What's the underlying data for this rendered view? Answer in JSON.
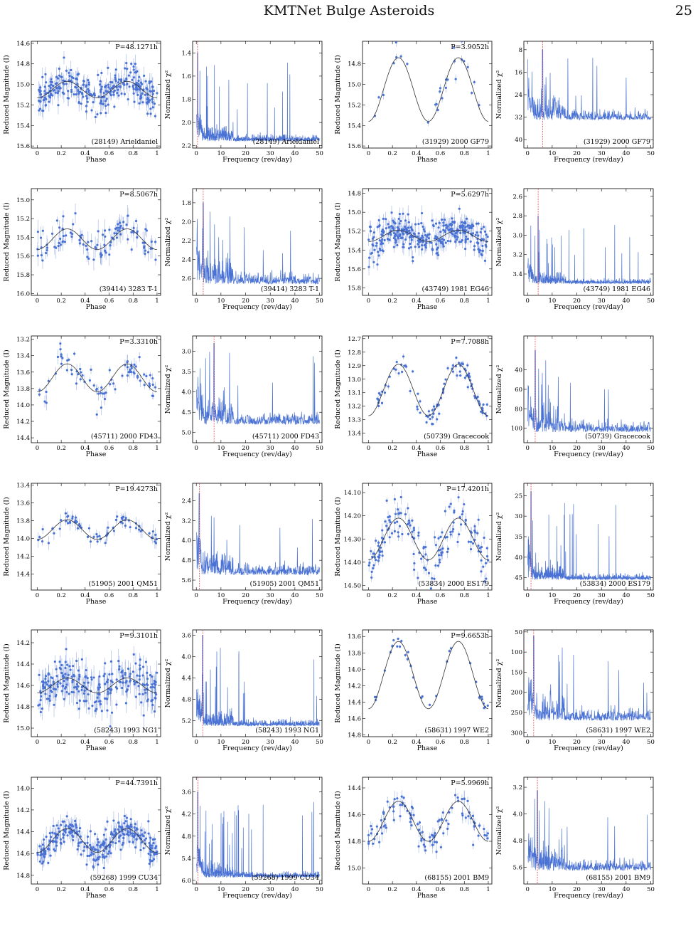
{
  "header": {
    "title": "KMTNet Bulge Asteroids",
    "page_number": "25"
  },
  "footer": {
    "text": ""
  },
  "labels": {
    "phase_x": "Phase",
    "phase_y": "Reduced Magnitude (I)",
    "freq_x": "Frequency (rev/day)",
    "freq_y": "Normalized χ²"
  },
  "colors": {
    "data": "#4a72d4",
    "fit": "#333333",
    "period_marker": "#e0333a",
    "frame": "#000000"
  },
  "chart_data": [
    {
      "type": "scatter",
      "name": "(28149) Arieldaniel",
      "period": "P=48.1271h",
      "phase": {
        "ylim": [
          15.62,
          14.58
        ],
        "yticks": [
          14.6,
          14.8,
          15.0,
          15.2,
          15.4,
          15.6
        ],
        "mean": 15.05,
        "amp": 0.08,
        "scatter": 0.09,
        "n": 300,
        "err": 0.06
      },
      "freq": {
        "ylim": [
          1.3,
          2.22
        ],
        "yticks": [
          1.4,
          1.6,
          1.8,
          2.0,
          2.2
        ],
        "plateau": 2.16,
        "low": 1.4,
        "marker": 0.5,
        "dense": true
      }
    },
    {
      "type": "scatter",
      "name": "(31929) 2000 GF79",
      "period": "P=3.9052h",
      "phase": {
        "ylim": [
          15.62,
          14.58
        ],
        "yticks": [
          14.8,
          15.0,
          15.2,
          15.4,
          15.6
        ],
        "mean": 15.05,
        "amp": 0.31,
        "scatter": 0.06,
        "n": 28,
        "err": 0.03
      },
      "freq": {
        "ylim": [
          5,
          43
        ],
        "yticks": [
          8,
          16,
          24,
          32,
          40
        ],
        "plateau": 33,
        "low": 8,
        "marker": 6.1,
        "dense": false
      }
    },
    {
      "type": "scatter",
      "name": "(39414) 3283 T-1",
      "period": "P=8.5067h",
      "phase": {
        "ylim": [
          16.02,
          14.88
        ],
        "yticks": [
          15.0,
          15.2,
          15.4,
          15.6,
          15.8,
          16.0
        ],
        "mean": 15.42,
        "amp": 0.11,
        "scatter": 0.08,
        "n": 110,
        "err": 0.08
      },
      "freq": {
        "ylim": [
          1.65,
          2.78
        ],
        "yticks": [
          1.8,
          2.0,
          2.2,
          2.4,
          2.6
        ],
        "plateau": 2.66,
        "low": 1.8,
        "marker": 2.8,
        "dense": false
      }
    },
    {
      "type": "scatter",
      "name": "(43749) 1981 EG46",
      "period": "P=5.6297h",
      "phase": {
        "ylim": [
          15.88,
          14.75
        ],
        "yticks": [
          14.8,
          15.0,
          15.2,
          15.4,
          15.6,
          15.8
        ],
        "mean": 15.25,
        "amp": 0.06,
        "scatter": 0.1,
        "n": 330,
        "err": 0.06
      },
      "freq": {
        "ylim": [
          2.52,
          3.62
        ],
        "yticks": [
          2.6,
          2.8,
          3.0,
          3.2,
          3.4
        ],
        "plateau": 3.5,
        "low": 2.8,
        "marker": 4.3,
        "dense": true
      }
    },
    {
      "type": "scatter",
      "name": "(45711) 2000 FD43",
      "period": "P=3.3310h",
      "phase": {
        "ylim": [
          14.46,
          13.16
        ],
        "yticks": [
          13.2,
          13.4,
          13.6,
          13.8,
          14.0,
          14.2,
          14.4
        ],
        "mean": 13.67,
        "amp": 0.17,
        "scatter": 0.1,
        "n": 80,
        "err": 0.06
      },
      "freq": {
        "ylim": [
          2.62,
          5.25
        ],
        "yticks": [
          3.0,
          3.5,
          4.0,
          4.5,
          5.0
        ],
        "plateau": 4.8,
        "low": 2.8,
        "marker": 7.2,
        "dense": false
      }
    },
    {
      "type": "scatter",
      "name": "(50739) Gracecook",
      "period": "P=7.7088h",
      "phase": {
        "ylim": [
          13.47,
          12.68
        ],
        "yticks": [
          12.7,
          12.8,
          12.9,
          13.0,
          13.1,
          13.2,
          13.3,
          13.4
        ],
        "mean": 13.08,
        "amp": 0.19,
        "scatter": 0.05,
        "n": 100,
        "err": 0.02
      },
      "freq": {
        "ylim": [
          5,
          115
        ],
        "yticks": [
          40,
          60,
          80,
          100
        ],
        "plateau": 104,
        "low": 20,
        "marker": 3.1,
        "dense": false
      }
    },
    {
      "type": "scatter",
      "name": "(51905) 2001 QM51",
      "period": "P=19.4273h",
      "phase": {
        "ylim": [
          14.58,
          13.38
        ],
        "yticks": [
          13.4,
          13.6,
          13.8,
          14.0,
          14.2,
          14.4
        ],
        "mean": 13.9,
        "amp": 0.11,
        "scatter": 0.05,
        "n": 70,
        "err": 0.06
      },
      "freq": {
        "ylim": [
          1.7,
          6.0
        ],
        "yticks": [
          2.4,
          3.2,
          4.0,
          4.8,
          5.6
        ],
        "plateau": 5.4,
        "low": 2.1,
        "marker": 1.2,
        "dense": false
      }
    },
    {
      "type": "scatter",
      "name": "(53834) 2000 ES179",
      "period": "P=17.4201h",
      "phase": {
        "ylim": [
          14.52,
          14.06
        ],
        "yticks": [
          14.1,
          14.2,
          14.3,
          14.4,
          14.5
        ],
        "mean": 14.3,
        "amp": 0.09,
        "scatter": 0.05,
        "n": 160,
        "err": 0.02
      },
      "freq": {
        "ylim": [
          22,
          48
        ],
        "yticks": [
          25,
          30,
          35,
          40,
          45
        ],
        "plateau": 45.5,
        "low": 24,
        "marker": 1.4,
        "dense": true
      }
    },
    {
      "type": "scatter",
      "name": "(58243) 1993 NG1",
      "period": "P=9.3101h",
      "phase": {
        "ylim": [
          15.08,
          14.08
        ],
        "yticks": [
          14.2,
          14.4,
          14.6,
          14.8,
          15.0
        ],
        "mean": 14.6,
        "amp": 0.07,
        "scatter": 0.1,
        "n": 260,
        "err": 0.08
      },
      "freq": {
        "ylim": [
          3.5,
          5.5
        ],
        "yticks": [
          3.6,
          4.0,
          4.4,
          4.8,
          5.2
        ],
        "plateau": 5.3,
        "low": 3.6,
        "marker": 2.6,
        "dense": true
      }
    },
    {
      "type": "scatter",
      "name": "(58631) 1997 WE2",
      "period": "P=9.6653h",
      "phase": {
        "ylim": [
          14.82,
          13.52
        ],
        "yticks": [
          13.6,
          13.8,
          14.0,
          14.2,
          14.4,
          14.6,
          14.8
        ],
        "mean": 14.07,
        "amp": 0.41,
        "scatter": 0.05,
        "n": 36,
        "err": 0.02
      },
      "freq": {
        "ylim": [
          45,
          310
        ],
        "yticks": [
          50,
          100,
          150,
          200,
          250,
          300
        ],
        "plateau": 270,
        "low": 60,
        "marker": 2.5,
        "dense": false
      }
    },
    {
      "type": "scatter",
      "name": "(59268) 1999 CU34",
      "period": "P=44.7391h",
      "phase": {
        "ylim": [
          14.88,
          13.9
        ],
        "yticks": [
          14.0,
          14.2,
          14.4,
          14.6,
          14.8
        ],
        "mean": 14.48,
        "amp": 0.11,
        "scatter": 0.07,
        "n": 300,
        "err": 0.06
      },
      "freq": {
        "ylim": [
          3.2,
          6.1
        ],
        "yticks": [
          3.6,
          4.2,
          4.8,
          5.4,
          6.0
        ],
        "plateau": 5.92,
        "low": 3.6,
        "marker": 0.6,
        "dense": true
      }
    },
    {
      "type": "scatter",
      "name": "(68155) 2001 BM9",
      "period": "P=5.9969h",
      "phase": {
        "ylim": [
          15.12,
          14.32
        ],
        "yticks": [
          14.4,
          14.6,
          14.8,
          15.0
        ],
        "mean": 14.65,
        "amp": 0.15,
        "scatter": 0.06,
        "n": 110,
        "err": 0.04
      },
      "freq": {
        "ylim": [
          2.9,
          6.1
        ],
        "yticks": [
          3.2,
          4.0,
          4.8,
          5.6
        ],
        "plateau": 5.7,
        "low": 3.3,
        "marker": 4.0,
        "dense": false
      }
    }
  ]
}
